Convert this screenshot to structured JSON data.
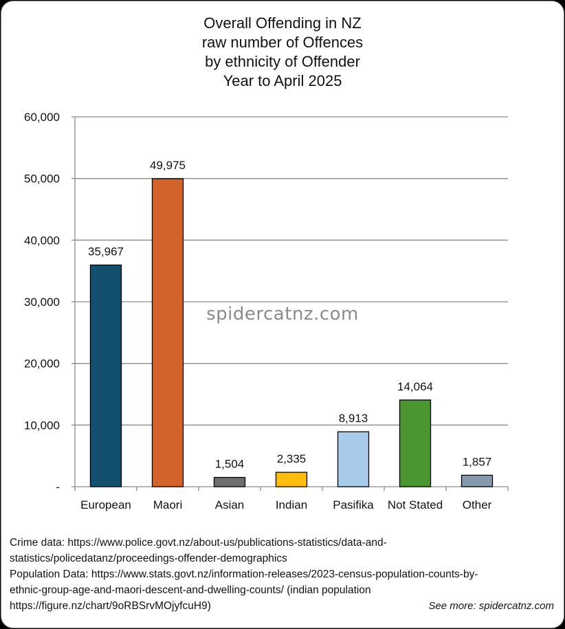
{
  "chart_data": {
    "type": "bar",
    "title_lines": [
      "Overall Offending in NZ",
      "raw number of Offences",
      "by ethnicity of Offender",
      "Year to April 2025"
    ],
    "categories": [
      "European",
      "Maori",
      "Asian",
      "Indian",
      "Pasifika",
      "Not Stated",
      "Other"
    ],
    "values": [
      35967,
      49975,
      1504,
      2335,
      8913,
      14064,
      1857
    ],
    "value_labels": [
      "35,967",
      "49,975",
      "1,504",
      "2,335",
      "8,913",
      "14,064",
      "1,857"
    ],
    "colors": [
      "#12506e",
      "#d2632b",
      "#6f6f6f",
      "#ffbe0f",
      "#a9cbea",
      "#4b9630",
      "#8799ad"
    ],
    "y_ticks": [
      0,
      10000,
      20000,
      30000,
      40000,
      50000,
      60000
    ],
    "y_tick_labels": [
      "-",
      "10,000",
      "20,000",
      "30,000",
      "40,000",
      "50,000",
      "60,000"
    ],
    "ylim": [
      0,
      60000
    ],
    "grid": true,
    "legend": "none",
    "watermark": "spidercatnz.com"
  },
  "footer": {
    "lines": [
      "Crime data: https://www.police.govt.nz/about-us/publications-statistics/data-and-",
      "statistics/policedatanz/proceedings-offender-demographics",
      "Population Data: https://www.stats.govt.nz/information-releases/2023-census-population-counts-by-",
      "ethnic-group-age-and-maori-descent-and-dwelling-counts/ (indian population",
      "https://figure.nz/chart/9oRBSrvMOjyfcuH9)"
    ],
    "see_more": "See more: spidercatnz.com"
  }
}
